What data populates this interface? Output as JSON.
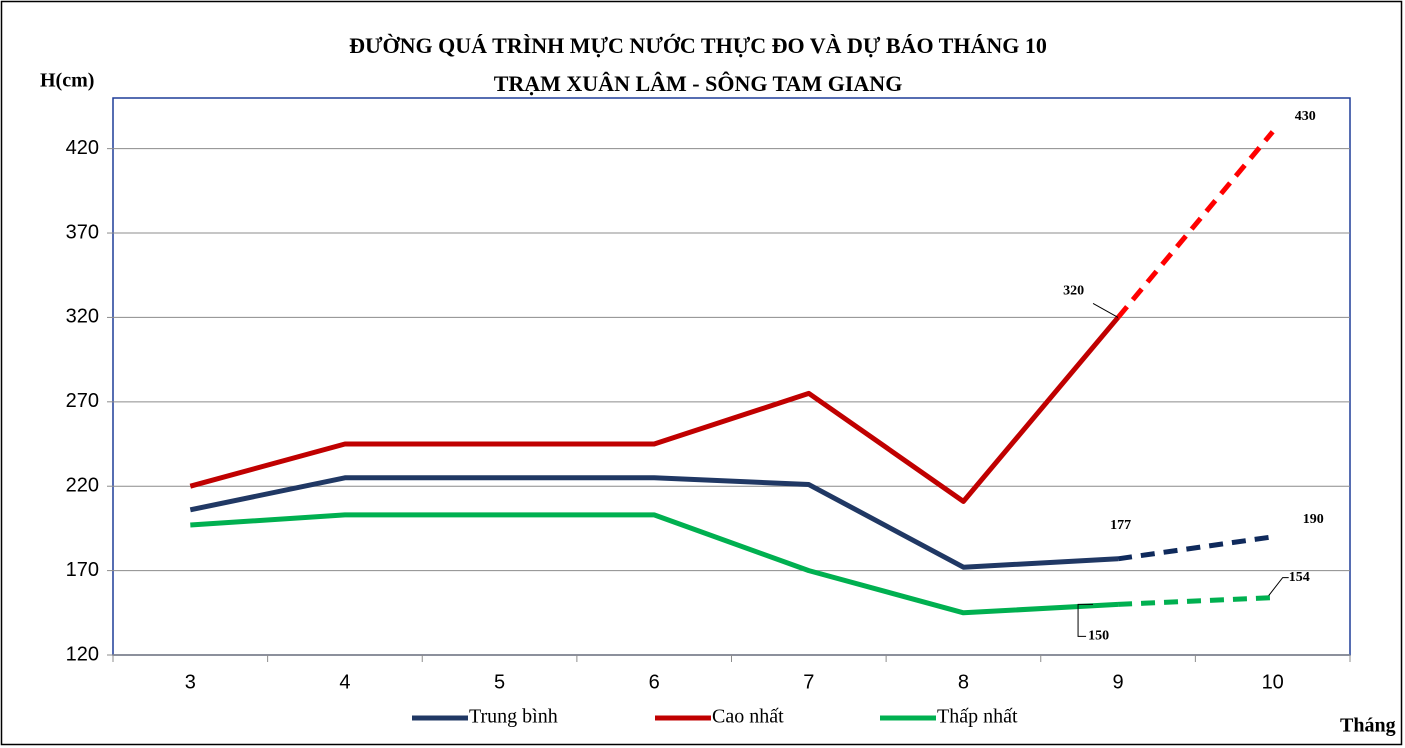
{
  "chart_data": {
    "type": "line",
    "title": "ĐƯỜNG QUÁ TRÌNH MỰC NƯỚC THỰC ĐO VÀ DỰ BÁO THÁNG 10",
    "subtitle": "TRẠM XUÂN LÂM -  SÔNG TAM GIANG",
    "y_label": "H(cm)",
    "x_label": "Tháng",
    "categories": [
      "3",
      "4",
      "5",
      "6",
      "7",
      "8",
      "9",
      "10"
    ],
    "series": [
      {
        "name": "Trung bình",
        "color": "#203864",
        "forecast_color": "#0f2a5c",
        "values": [
          206,
          225,
          225,
          225,
          221,
          172,
          177,
          null
        ],
        "forecast_values": [
          null,
          null,
          null,
          null,
          null,
          null,
          null,
          190
        ]
      },
      {
        "name": "Cao nhất",
        "color": "#c00000",
        "forecast_color": "#ff0000",
        "values": [
          220,
          245,
          245,
          245,
          275,
          211,
          320,
          null
        ],
        "forecast_values": [
          null,
          null,
          null,
          null,
          null,
          null,
          null,
          430
        ]
      },
      {
        "name": "Thấp nhất",
        "color": "#00b050",
        "forecast_color": "#00b050",
        "values": [
          197,
          203,
          203,
          203,
          170,
          145,
          150,
          null
        ],
        "forecast_values": [
          null,
          null,
          null,
          null,
          null,
          null,
          null,
          154
        ]
      }
    ],
    "ylim": [
      120,
      450
    ],
    "yticks": [
      120,
      170,
      220,
      270,
      320,
      370,
      420
    ],
    "grid": true,
    "legend": "bottom"
  }
}
